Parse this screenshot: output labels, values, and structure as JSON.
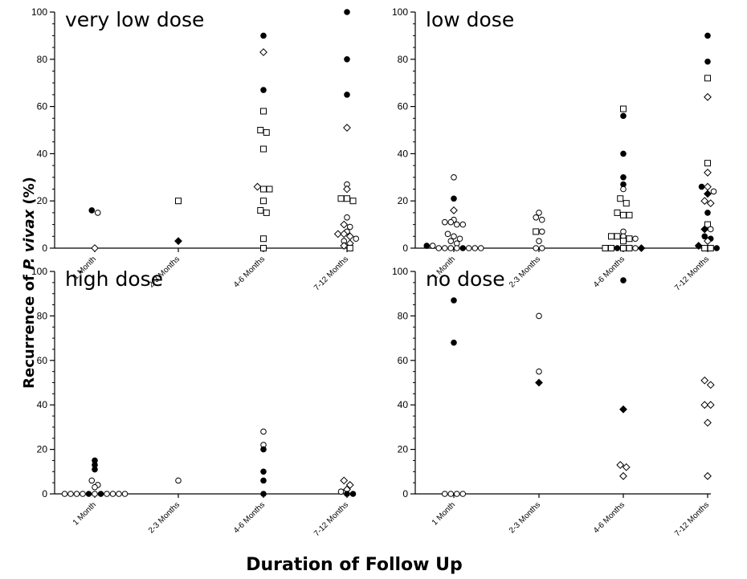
{
  "figure": {
    "ylabel_prefix": "Recurrence of ",
    "ylabel_italic": "P. vivax",
    "ylabel_suffix": " (%)",
    "xlabel": "Duration of Follow Up"
  },
  "chart_data": [
    {
      "type": "scatter",
      "title": "very low dose",
      "categories": [
        "1 Month",
        "2-3 Months",
        "4-6 Months",
        "7-12 Months"
      ],
      "ylim": [
        0,
        100
      ],
      "yticks": [
        0,
        20,
        40,
        60,
        80,
        100
      ],
      "points": [
        {
          "x": "1 Month",
          "y": 16,
          "marker": "circle-filled"
        },
        {
          "x": "1 Month",
          "y": 15,
          "marker": "circle-open"
        },
        {
          "x": "1 Month",
          "y": 0,
          "marker": "diamond-open"
        },
        {
          "x": "2-3 Months",
          "y": 20,
          "marker": "square-open"
        },
        {
          "x": "2-3 Months",
          "y": 3,
          "marker": "diamond-filled"
        },
        {
          "x": "4-6 Months",
          "y": 90,
          "marker": "circle-filled"
        },
        {
          "x": "4-6 Months",
          "y": 83,
          "marker": "diamond-open"
        },
        {
          "x": "4-6 Months",
          "y": 67,
          "marker": "circle-filled"
        },
        {
          "x": "4-6 Months",
          "y": 58,
          "marker": "square-open"
        },
        {
          "x": "4-6 Months",
          "y": 50,
          "marker": "square-open"
        },
        {
          "x": "4-6 Months",
          "y": 49,
          "marker": "square-open"
        },
        {
          "x": "4-6 Months",
          "y": 42,
          "marker": "square-open"
        },
        {
          "x": "4-6 Months",
          "y": 26,
          "marker": "diamond-open"
        },
        {
          "x": "4-6 Months",
          "y": 25,
          "marker": "square-open"
        },
        {
          "x": "4-6 Months",
          "y": 25,
          "marker": "square-open"
        },
        {
          "x": "4-6 Months",
          "y": 20,
          "marker": "square-open"
        },
        {
          "x": "4-6 Months",
          "y": 16,
          "marker": "square-open"
        },
        {
          "x": "4-6 Months",
          "y": 15,
          "marker": "square-open"
        },
        {
          "x": "4-6 Months",
          "y": 4,
          "marker": "square-open"
        },
        {
          "x": "4-6 Months",
          "y": 0,
          "marker": "square-open"
        },
        {
          "x": "7-12 Months",
          "y": 100,
          "marker": "circle-filled"
        },
        {
          "x": "7-12 Months",
          "y": 80,
          "marker": "circle-filled"
        },
        {
          "x": "7-12 Months",
          "y": 65,
          "marker": "circle-filled"
        },
        {
          "x": "7-12 Months",
          "y": 51,
          "marker": "diamond-open"
        },
        {
          "x": "7-12 Months",
          "y": 27,
          "marker": "circle-open"
        },
        {
          "x": "7-12 Months",
          "y": 25,
          "marker": "diamond-open"
        },
        {
          "x": "7-12 Months",
          "y": 21,
          "marker": "square-open"
        },
        {
          "x": "7-12 Months",
          "y": 21,
          "marker": "square-open"
        },
        {
          "x": "7-12 Months",
          "y": 20,
          "marker": "square-open"
        },
        {
          "x": "7-12 Months",
          "y": 13,
          "marker": "circle-open"
        },
        {
          "x": "7-12 Months",
          "y": 10,
          "marker": "diamond-open"
        },
        {
          "x": "7-12 Months",
          "y": 9,
          "marker": "circle-open"
        },
        {
          "x": "7-12 Months",
          "y": 7,
          "marker": "circle-open"
        },
        {
          "x": "7-12 Months",
          "y": 6,
          "marker": "diamond-open"
        },
        {
          "x": "7-12 Months",
          "y": 6,
          "marker": "diamond-open"
        },
        {
          "x": "7-12 Months",
          "y": 5,
          "marker": "diamond-open"
        },
        {
          "x": "7-12 Months",
          "y": 4,
          "marker": "circle-open"
        },
        {
          "x": "7-12 Months",
          "y": 3,
          "marker": "circle-open"
        },
        {
          "x": "7-12 Months",
          "y": 2,
          "marker": "diamond-open"
        },
        {
          "x": "7-12 Months",
          "y": 1,
          "marker": "diamond-open"
        },
        {
          "x": "7-12 Months",
          "y": 0,
          "marker": "square-open"
        }
      ]
    },
    {
      "type": "scatter",
      "title": "low dose",
      "categories": [
        "1 Month",
        "2-3 Months",
        "4-6 Months",
        "7-12 Months"
      ],
      "ylim": [
        0,
        100
      ],
      "yticks": [
        0,
        20,
        40,
        60,
        80,
        100
      ],
      "points": [
        {
          "x": "1 Month",
          "y": 30,
          "marker": "circle-open"
        },
        {
          "x": "1 Month",
          "y": 21,
          "marker": "circle-filled"
        },
        {
          "x": "1 Month",
          "y": 16,
          "marker": "diamond-open"
        },
        {
          "x": "1 Month",
          "y": 12,
          "marker": "circle-open"
        },
        {
          "x": "1 Month",
          "y": 11,
          "marker": "circle-open"
        },
        {
          "x": "1 Month",
          "y": 11,
          "marker": "circle-open"
        },
        {
          "x": "1 Month",
          "y": 10,
          "marker": "circle-open"
        },
        {
          "x": "1 Month",
          "y": 10,
          "marker": "circle-open"
        },
        {
          "x": "1 Month",
          "y": 6,
          "marker": "circle-open"
        },
        {
          "x": "1 Month",
          "y": 5,
          "marker": "circle-open"
        },
        {
          "x": "1 Month",
          "y": 4,
          "marker": "circle-open"
        },
        {
          "x": "1 Month",
          "y": 3,
          "marker": "circle-open"
        },
        {
          "x": "1 Month",
          "y": 2,
          "marker": "circle-open"
        },
        {
          "x": "1 Month",
          "y": 1,
          "marker": "circle-filled"
        },
        {
          "x": "1 Month",
          "y": 1,
          "marker": "circle-open"
        },
        {
          "x": "1 Month",
          "y": 0,
          "marker": "circle-open"
        },
        {
          "x": "1 Month",
          "y": 0,
          "marker": "circle-open"
        },
        {
          "x": "1 Month",
          "y": 0,
          "marker": "circle-open"
        },
        {
          "x": "1 Month",
          "y": 0,
          "marker": "circle-open"
        },
        {
          "x": "1 Month",
          "y": 0,
          "marker": "circle-filled"
        },
        {
          "x": "1 Month",
          "y": 0,
          "marker": "circle-open"
        },
        {
          "x": "1 Month",
          "y": 0,
          "marker": "circle-open"
        },
        {
          "x": "1 Month",
          "y": 0,
          "marker": "circle-open"
        },
        {
          "x": "2-3 Months",
          "y": 15,
          "marker": "circle-open"
        },
        {
          "x": "2-3 Months",
          "y": 13,
          "marker": "circle-open"
        },
        {
          "x": "2-3 Months",
          "y": 12,
          "marker": "circle-open"
        },
        {
          "x": "2-3 Months",
          "y": 7,
          "marker": "square-open"
        },
        {
          "x": "2-3 Months",
          "y": 7,
          "marker": "circle-open"
        },
        {
          "x": "2-3 Months",
          "y": 3,
          "marker": "circle-open"
        },
        {
          "x": "2-3 Months",
          "y": 0,
          "marker": "circle-open"
        },
        {
          "x": "2-3 Months",
          "y": 0,
          "marker": "circle-open"
        },
        {
          "x": "4-6 Months",
          "y": 59,
          "marker": "square-open"
        },
        {
          "x": "4-6 Months",
          "y": 56,
          "marker": "circle-filled"
        },
        {
          "x": "4-6 Months",
          "y": 40,
          "marker": "circle-filled"
        },
        {
          "x": "4-6 Months",
          "y": 30,
          "marker": "circle-filled"
        },
        {
          "x": "4-6 Months",
          "y": 27,
          "marker": "circle-filled"
        },
        {
          "x": "4-6 Months",
          "y": 25,
          "marker": "circle-open"
        },
        {
          "x": "4-6 Months",
          "y": 21,
          "marker": "square-open"
        },
        {
          "x": "4-6 Months",
          "y": 19,
          "marker": "square-open"
        },
        {
          "x": "4-6 Months",
          "y": 15,
          "marker": "square-open"
        },
        {
          "x": "4-6 Months",
          "y": 14,
          "marker": "square-open"
        },
        {
          "x": "4-6 Months",
          "y": 14,
          "marker": "square-open"
        },
        {
          "x": "4-6 Months",
          "y": 7,
          "marker": "circle-open"
        },
        {
          "x": "4-6 Months",
          "y": 5,
          "marker": "square-open"
        },
        {
          "x": "4-6 Months",
          "y": 5,
          "marker": "square-open"
        },
        {
          "x": "4-6 Months",
          "y": 5,
          "marker": "circle-open"
        },
        {
          "x": "4-6 Months",
          "y": 4,
          "marker": "square-open"
        },
        {
          "x": "4-6 Months",
          "y": 4,
          "marker": "circle-open"
        },
        {
          "x": "4-6 Months",
          "y": 3,
          "marker": "square-open"
        },
        {
          "x": "4-6 Months",
          "y": 0,
          "marker": "square-open"
        },
        {
          "x": "4-6 Months",
          "y": 0,
          "marker": "square-open"
        },
        {
          "x": "4-6 Months",
          "y": 0,
          "marker": "circle-filled"
        },
        {
          "x": "4-6 Months",
          "y": 0,
          "marker": "square-open"
        },
        {
          "x": "4-6 Months",
          "y": 0,
          "marker": "square-open"
        },
        {
          "x": "4-6 Months",
          "y": 0,
          "marker": "circle-open"
        },
        {
          "x": "4-6 Months",
          "y": 0,
          "marker": "diamond-filled"
        },
        {
          "x": "7-12 Months",
          "y": 90,
          "marker": "circle-filled"
        },
        {
          "x": "7-12 Months",
          "y": 79,
          "marker": "circle-filled"
        },
        {
          "x": "7-12 Months",
          "y": 72,
          "marker": "square-open"
        },
        {
          "x": "7-12 Months",
          "y": 64,
          "marker": "diamond-open"
        },
        {
          "x": "7-12 Months",
          "y": 36,
          "marker": "square-open"
        },
        {
          "x": "7-12 Months",
          "y": 32,
          "marker": "diamond-open"
        },
        {
          "x": "7-12 Months",
          "y": 26,
          "marker": "circle-filled"
        },
        {
          "x": "7-12 Months",
          "y": 26,
          "marker": "diamond-open"
        },
        {
          "x": "7-12 Months",
          "y": 24,
          "marker": "circle-open"
        },
        {
          "x": "7-12 Months",
          "y": 23,
          "marker": "diamond-filled"
        },
        {
          "x": "7-12 Months",
          "y": 20,
          "marker": "diamond-open"
        },
        {
          "x": "7-12 Months",
          "y": 19,
          "marker": "diamond-open"
        },
        {
          "x": "7-12 Months",
          "y": 15,
          "marker": "circle-filled"
        },
        {
          "x": "7-12 Months",
          "y": 10,
          "marker": "square-open"
        },
        {
          "x": "7-12 Months",
          "y": 8,
          "marker": "diamond-filled"
        },
        {
          "x": "7-12 Months",
          "y": 8,
          "marker": "circle-open"
        },
        {
          "x": "7-12 Months",
          "y": 5,
          "marker": "circle-filled"
        },
        {
          "x": "7-12 Months",
          "y": 4,
          "marker": "circle-filled"
        },
        {
          "x": "7-12 Months",
          "y": 3,
          "marker": "diamond-open"
        },
        {
          "x": "7-12 Months",
          "y": 1,
          "marker": "diamond-filled"
        },
        {
          "x": "7-12 Months",
          "y": 0,
          "marker": "square-open"
        },
        {
          "x": "7-12 Months",
          "y": 0,
          "marker": "square-open"
        },
        {
          "x": "7-12 Months",
          "y": 0,
          "marker": "circle-filled"
        }
      ]
    },
    {
      "type": "scatter",
      "title": "high dose",
      "categories": [
        "1 Month",
        "2-3 Months",
        "4-6 Months",
        "7-12 Months"
      ],
      "ylim": [
        0,
        100
      ],
      "yticks": [
        0,
        20,
        40,
        60,
        80,
        100
      ],
      "points": [
        {
          "x": "1 Month",
          "y": 15,
          "marker": "circle-filled"
        },
        {
          "x": "1 Month",
          "y": 13,
          "marker": "circle-filled"
        },
        {
          "x": "1 Month",
          "y": 11,
          "marker": "circle-filled"
        },
        {
          "x": "1 Month",
          "y": 6,
          "marker": "circle-open"
        },
        {
          "x": "1 Month",
          "y": 4,
          "marker": "circle-open"
        },
        {
          "x": "1 Month",
          "y": 3,
          "marker": "circle-open"
        },
        {
          "x": "1 Month",
          "y": 0,
          "marker": "circle-open"
        },
        {
          "x": "1 Month",
          "y": 0,
          "marker": "circle-open"
        },
        {
          "x": "1 Month",
          "y": 0,
          "marker": "circle-open"
        },
        {
          "x": "1 Month",
          "y": 0,
          "marker": "circle-open"
        },
        {
          "x": "1 Month",
          "y": 0,
          "marker": "circle-filled"
        },
        {
          "x": "1 Month",
          "y": 0,
          "marker": "circle-open"
        },
        {
          "x": "1 Month",
          "y": 0,
          "marker": "circle-filled"
        },
        {
          "x": "1 Month",
          "y": 0,
          "marker": "circle-open"
        },
        {
          "x": "1 Month",
          "y": 0,
          "marker": "circle-open"
        },
        {
          "x": "1 Month",
          "y": 0,
          "marker": "circle-open"
        },
        {
          "x": "1 Month",
          "y": 0,
          "marker": "circle-open"
        },
        {
          "x": "2-3 Months",
          "y": 6,
          "marker": "circle-open"
        },
        {
          "x": "4-6 Months",
          "y": 28,
          "marker": "circle-open"
        },
        {
          "x": "4-6 Months",
          "y": 22,
          "marker": "circle-open"
        },
        {
          "x": "4-6 Months",
          "y": 20,
          "marker": "circle-filled"
        },
        {
          "x": "4-6 Months",
          "y": 10,
          "marker": "circle-filled"
        },
        {
          "x": "4-6 Months",
          "y": 6,
          "marker": "circle-filled"
        },
        {
          "x": "4-6 Months",
          "y": 0,
          "marker": "circle-filled"
        },
        {
          "x": "7-12 Months",
          "y": 6,
          "marker": "diamond-open"
        },
        {
          "x": "7-12 Months",
          "y": 4,
          "marker": "diamond-open"
        },
        {
          "x": "7-12 Months",
          "y": 2,
          "marker": "diamond-open"
        },
        {
          "x": "7-12 Months",
          "y": 1,
          "marker": "circle-open"
        },
        {
          "x": "7-12 Months",
          "y": 0,
          "marker": "circle-filled"
        },
        {
          "x": "7-12 Months",
          "y": 0,
          "marker": "circle-filled"
        }
      ]
    },
    {
      "type": "scatter",
      "title": "no dose",
      "categories": [
        "1 Month",
        "2-3 Months",
        "4-6 Months",
        "7-12 Months"
      ],
      "ylim": [
        0,
        100
      ],
      "yticks": [
        0,
        20,
        40,
        60,
        80,
        100
      ],
      "points": [
        {
          "x": "1 Month",
          "y": 87,
          "marker": "circle-filled"
        },
        {
          "x": "1 Month",
          "y": 68,
          "marker": "circle-filled"
        },
        {
          "x": "1 Month",
          "y": 0,
          "marker": "circle-open"
        },
        {
          "x": "1 Month",
          "y": 0,
          "marker": "circle-open"
        },
        {
          "x": "1 Month",
          "y": 0,
          "marker": "circle-open"
        },
        {
          "x": "1 Month",
          "y": 0,
          "marker": "circle-open"
        },
        {
          "x": "2-3 Months",
          "y": 80,
          "marker": "circle-open"
        },
        {
          "x": "2-3 Months",
          "y": 55,
          "marker": "circle-open"
        },
        {
          "x": "2-3 Months",
          "y": 50,
          "marker": "diamond-filled"
        },
        {
          "x": "4-6 Months",
          "y": 96,
          "marker": "circle-filled"
        },
        {
          "x": "4-6 Months",
          "y": 38,
          "marker": "diamond-filled"
        },
        {
          "x": "4-6 Months",
          "y": 13,
          "marker": "diamond-open"
        },
        {
          "x": "4-6 Months",
          "y": 12,
          "marker": "diamond-open"
        },
        {
          "x": "4-6 Months",
          "y": 8,
          "marker": "diamond-open"
        },
        {
          "x": "7-12 Months",
          "y": 51,
          "marker": "diamond-open"
        },
        {
          "x": "7-12 Months",
          "y": 49,
          "marker": "diamond-open"
        },
        {
          "x": "7-12 Months",
          "y": 40,
          "marker": "diamond-open"
        },
        {
          "x": "7-12 Months",
          "y": 40,
          "marker": "diamond-open"
        },
        {
          "x": "7-12 Months",
          "y": 32,
          "marker": "diamond-open"
        },
        {
          "x": "7-12 Months",
          "y": 8,
          "marker": "diamond-open"
        }
      ]
    }
  ]
}
